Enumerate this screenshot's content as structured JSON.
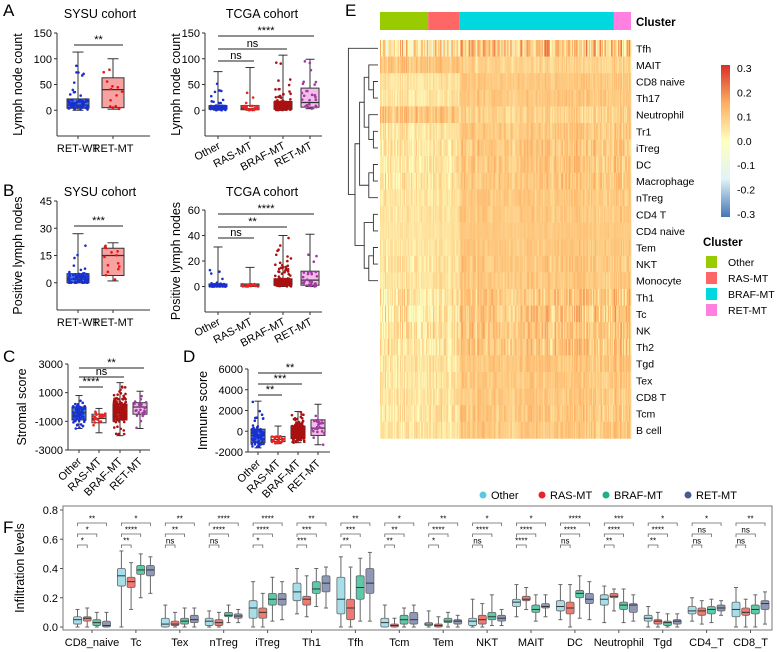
{
  "panel_labels": [
    "A",
    "B",
    "C",
    "D",
    "E",
    "F"
  ],
  "chart_data": [
    {
      "type": "box",
      "panel": "A",
      "title": "SYSU cohort",
      "ylabel": "Lymph node count",
      "ylim": [
        -50,
        150
      ],
      "yticks": [
        0,
        50,
        100,
        150
      ],
      "categories": [
        "RET-WT",
        "RET-MT"
      ],
      "stats": [
        [
          0,
          4,
          10,
          22,
          113
        ],
        [
          2,
          5,
          40,
          63,
          100
        ]
      ],
      "fill_colors": [
        "#3f7ee8",
        "#f7a1a1"
      ],
      "dot_colors": [
        "#1a2fd0",
        "#ee1111"
      ],
      "comparisons": [
        {
          "pair": [
            0,
            1
          ],
          "label": "**"
        }
      ]
    },
    {
      "type": "box",
      "panel": "A",
      "title": "TCGA  cohort",
      "ylabel": "Lymph node count",
      "ylim": [
        -50,
        150
      ],
      "yticks": [
        0,
        50,
        100,
        150
      ],
      "categories": [
        "Other",
        "RAS-MT",
        "BRAF-MT",
        "RET-MT"
      ],
      "stats": [
        [
          0,
          2,
          5,
          9,
          75
        ],
        [
          0,
          1,
          3,
          9,
          83
        ],
        [
          0,
          2,
          8,
          17,
          107
        ],
        [
          3,
          6,
          15,
          43,
          99
        ]
      ],
      "fill_colors": [
        "#3f7ee8",
        "#ffffff",
        "#c43a3a",
        "#f3bde9"
      ],
      "dot_colors": [
        "#1a2fd0",
        "#ee2222",
        "#aa1111",
        "#a03aa0"
      ],
      "comparisons": [
        {
          "pair": [
            0,
            1
          ],
          "label": "ns"
        },
        {
          "pair": [
            0,
            2
          ],
          "label": "ns"
        },
        {
          "pair": [
            0,
            3
          ],
          "label": "****"
        }
      ]
    },
    {
      "type": "box",
      "panel": "B",
      "title": "SYSU cohort",
      "ylabel": "Positive  lymph nodes",
      "ylim": [
        -15,
        45
      ],
      "yticks": [
        0,
        15,
        30,
        45
      ],
      "categories": [
        "RET-WT",
        "RET-MT"
      ],
      "stats": [
        [
          0,
          0,
          2,
          5,
          27
        ],
        [
          1,
          4,
          15,
          19,
          22
        ]
      ],
      "fill_colors": [
        "#3f7ee8",
        "#f7a1a1"
      ],
      "dot_colors": [
        "#1a2fd0",
        "#ee1111"
      ],
      "comparisons": [
        {
          "pair": [
            0,
            1
          ],
          "label": "***"
        }
      ]
    },
    {
      "type": "box",
      "panel": "B",
      "title": "TCGA  cohort",
      "ylabel": "Positive  lymph nodes",
      "ylim": [
        -20,
        60
      ],
      "yticks": [
        0,
        20,
        40,
        60
      ],
      "categories": [
        "Other",
        "RAS-MT",
        "BRAF-MT",
        "RET-MT"
      ],
      "stats": [
        [
          0,
          0,
          1,
          2,
          31
        ],
        [
          0,
          0,
          1,
          2,
          15
        ],
        [
          0,
          1,
          3,
          6,
          40
        ],
        [
          0,
          1,
          5,
          12,
          41
        ]
      ],
      "fill_colors": [
        "#3f7ee8",
        "#ffffff",
        "#c43a3a",
        "#f3bde9"
      ],
      "dot_colors": [
        "#1a2fd0",
        "#ee2222",
        "#aa1111",
        "#a03aa0"
      ],
      "comparisons": [
        {
          "pair": [
            0,
            1
          ],
          "label": "ns"
        },
        {
          "pair": [
            0,
            2
          ],
          "label": "**"
        },
        {
          "pair": [
            0,
            3
          ],
          "label": "****"
        }
      ]
    },
    {
      "type": "box",
      "panel": "C",
      "title": "",
      "ylabel": "Stromal  score",
      "ylim": [
        -3000,
        3000
      ],
      "yticks": [
        -3000,
        -1000,
        1000,
        3000
      ],
      "categories": [
        "Other",
        "RAS-MT",
        "BRAF-MT",
        "RET-MT"
      ],
      "stats": [
        [
          -1500,
          -900,
          -400,
          0,
          800
        ],
        [
          -1800,
          -1100,
          -800,
          -500,
          -100
        ],
        [
          -2000,
          -900,
          -400,
          200,
          1700
        ],
        [
          -1500,
          -500,
          0,
          300,
          1100
        ]
      ],
      "fill_colors": [
        "#3f7ee8",
        "#ffffff",
        "#c43a3a",
        "#f3bde9"
      ],
      "dot_colors": [
        "#1a2fd0",
        "#ee2222",
        "#aa1111",
        "#a03aa0"
      ],
      "comparisons": [
        {
          "pair": [
            0,
            1
          ],
          "label": "****"
        },
        {
          "pair": [
            0,
            2
          ],
          "label": "ns"
        },
        {
          "pair": [
            0,
            3
          ],
          "label": "**"
        }
      ]
    },
    {
      "type": "box",
      "panel": "D",
      "title": "",
      "ylabel": "Immune score",
      "ylim": [
        -2000,
        6000
      ],
      "yticks": [
        -2000,
        0,
        2000,
        4000,
        6000
      ],
      "categories": [
        "Other",
        "RAS-MT",
        "BRAF-MT",
        "RET-MT"
      ],
      "stats": [
        [
          -1600,
          -1100,
          -400,
          200,
          2900
        ],
        [
          -1200,
          -1000,
          -800,
          -500,
          500
        ],
        [
          -1100,
          -700,
          0,
          500,
          1900
        ],
        [
          -1300,
          -400,
          300,
          1100,
          2600
        ]
      ],
      "fill_colors": [
        "#3f7ee8",
        "#ffffff",
        "#c43a3a",
        "#f3bde9"
      ],
      "dot_colors": [
        "#1a2fd0",
        "#ee2222",
        "#aa1111",
        "#a03aa0"
      ],
      "comparisons": [
        {
          "pair": [
            0,
            1
          ],
          "label": "**"
        },
        {
          "pair": [
            0,
            2
          ],
          "label": "***"
        },
        {
          "pair": [
            0,
            3
          ],
          "label": "**"
        }
      ]
    },
    {
      "type": "heatmap",
      "panel": "E",
      "annotation_title": "Cluster",
      "rows": [
        "Tfh",
        "MAIT",
        "CD8 naive",
        "Th17",
        "Neutrophil",
        "Tr1",
        "iTreg",
        "DC",
        "Macrophage",
        "nTreg",
        "CD4 T",
        "CD4 naive",
        "Tem",
        "NKT",
        "Monocyte",
        "Th1",
        "Tc",
        "NK",
        "Th2",
        "Tgd",
        "Tex",
        "CD8 T",
        "Tcm",
        "B cell"
      ],
      "clusters": [
        {
          "name": "Other",
          "color": "#99cc00",
          "approx_samples": 48
        },
        {
          "name": "RAS-MT",
          "color": "#ff6666",
          "approx_samples": 31
        },
        {
          "name": "BRAF-MT",
          "color": "#00d8e0",
          "approx_samples": 154
        },
        {
          "name": "RET-MT",
          "color": "#ff80e0",
          "approx_samples": 17
        }
      ],
      "colorbar": {
        "range": [
          -0.3,
          0.3
        ],
        "ticks": [
          "0.3",
          "0.2",
          "0.1",
          "0.0",
          "-0.1",
          "-0.2",
          "-0.3"
        ],
        "colors": [
          "#4575b4",
          "#e0f3f8",
          "#ffffbf",
          "#fdae61",
          "#d73027"
        ]
      },
      "legend_title": "Cluster"
    },
    {
      "type": "box",
      "panel": "F",
      "ylabel": "Infiltration  levels",
      "ylim": [
        0,
        0.8
      ],
      "yticks": [
        "0.0",
        "0.2",
        "0.4",
        "0.6",
        "0.8"
      ],
      "legend": [
        {
          "name": "Other",
          "color": "#5bc8e3"
        },
        {
          "name": "RAS-MT",
          "color": "#e8242a"
        },
        {
          "name": "BRAF-MT",
          "color": "#1fae8a"
        },
        {
          "name": "RET-MT",
          "color": "#4a5a8c"
        }
      ],
      "fill_colors": [
        "#a6dfea",
        "#ee7a72",
        "#5ccaa8",
        "#8e98b8"
      ],
      "categories": [
        "CD8_naive",
        "Tc",
        "Tex",
        "nTreg",
        "iTreg",
        "Th1",
        "Tfh",
        "Tcm",
        "Tem",
        "NKT",
        "MAIT",
        "DC",
        "Neutrophil",
        "Tgd",
        "CD4_T",
        "CD8_T"
      ],
      "stats": [
        [
          [
            0,
            0.02,
            0.05,
            0.07,
            0.12
          ],
          [
            0,
            0.04,
            0.06,
            0.07,
            0.13
          ],
          [
            0,
            0.01,
            0.03,
            0.05,
            0.1
          ],
          [
            0,
            0,
            0.01,
            0.04,
            0.1
          ]
        ],
        [
          [
            0,
            0.28,
            0.35,
            0.4,
            0.52
          ],
          [
            0.12,
            0.27,
            0.31,
            0.34,
            0.44
          ],
          [
            0.2,
            0.36,
            0.39,
            0.42,
            0.5
          ],
          [
            0.23,
            0.35,
            0.39,
            0.42,
            0.48
          ]
        ],
        [
          [
            0,
            0,
            0.02,
            0.06,
            0.15
          ],
          [
            0,
            0.01,
            0.02,
            0.04,
            0.1
          ],
          [
            0,
            0.02,
            0.04,
            0.06,
            0.13
          ],
          [
            0,
            0.03,
            0.05,
            0.08,
            0.13
          ]
        ],
        [
          [
            0,
            0.01,
            0.04,
            0.06,
            0.11
          ],
          [
            0,
            0.01,
            0.03,
            0.05,
            0.1
          ],
          [
            0.03,
            0.07,
            0.08,
            0.1,
            0.15
          ],
          [
            0.03,
            0.06,
            0.075,
            0.09,
            0.12
          ]
        ],
        [
          [
            0,
            0.06,
            0.13,
            0.18,
            0.31
          ],
          [
            0,
            0.06,
            0.1,
            0.13,
            0.23
          ],
          [
            0.04,
            0.15,
            0.19,
            0.23,
            0.34
          ],
          [
            0.05,
            0.15,
            0.19,
            0.23,
            0.31
          ]
        ],
        [
          [
            0.09,
            0.18,
            0.24,
            0.3,
            0.4
          ],
          [
            0.07,
            0.15,
            0.19,
            0.21,
            0.35
          ],
          [
            0.14,
            0.23,
            0.26,
            0.31,
            0.4
          ],
          [
            0.13,
            0.24,
            0.3,
            0.35,
            0.41
          ]
        ],
        [
          [
            0,
            0.09,
            0.19,
            0.34,
            0.48
          ],
          [
            0,
            0.05,
            0.13,
            0.19,
            0.41
          ],
          [
            0.04,
            0.19,
            0.27,
            0.35,
            0.47
          ],
          [
            0.04,
            0.23,
            0.3,
            0.4,
            0.51
          ]
        ],
        [
          [
            0,
            0,
            0.03,
            0.06,
            0.15
          ],
          [
            0,
            0,
            0.01,
            0.02,
            0.06
          ],
          [
            0,
            0.02,
            0.05,
            0.08,
            0.13
          ],
          [
            0,
            0.02,
            0.05,
            0.1,
            0.15
          ]
        ],
        [
          [
            0,
            0.01,
            0.02,
            0.03,
            0.11
          ],
          [
            0,
            0,
            0.01,
            0.02,
            0.07
          ],
          [
            0,
            0.03,
            0.04,
            0.06,
            0.1
          ],
          [
            0,
            0.02,
            0.04,
            0.05,
            0.08
          ]
        ],
        [
          [
            0,
            0.01,
            0.04,
            0.06,
            0.19
          ],
          [
            0,
            0.02,
            0.05,
            0.08,
            0.16
          ],
          [
            0.01,
            0.05,
            0.07,
            0.1,
            0.22
          ],
          [
            0.01,
            0.04,
            0.06,
            0.08,
            0.12
          ]
        ],
        [
          [
            0.07,
            0.14,
            0.17,
            0.19,
            0.29
          ],
          [
            0.12,
            0.18,
            0.19,
            0.21,
            0.27
          ],
          [
            0.04,
            0.1,
            0.12,
            0.15,
            0.22
          ],
          [
            0.07,
            0.13,
            0.14,
            0.16,
            0.22
          ]
        ],
        [
          [
            0.05,
            0.11,
            0.14,
            0.18,
            0.29
          ],
          [
            0,
            0.09,
            0.13,
            0.17,
            0.29
          ],
          [
            0.06,
            0.2,
            0.23,
            0.25,
            0.35
          ],
          [
            0.05,
            0.16,
            0.19,
            0.23,
            0.31
          ]
        ],
        [
          [
            0.03,
            0.15,
            0.19,
            0.22,
            0.28
          ],
          [
            0.11,
            0.2,
            0.21,
            0.23,
            0.26
          ],
          [
            0.03,
            0.12,
            0.15,
            0.17,
            0.26
          ],
          [
            0.04,
            0.1,
            0.15,
            0.16,
            0.22
          ]
        ],
        [
          [
            0,
            0.04,
            0.06,
            0.08,
            0.14
          ],
          [
            0,
            0.02,
            0.04,
            0.05,
            0.1
          ],
          [
            0,
            0.01,
            0.03,
            0.04,
            0.09
          ],
          [
            0,
            0.02,
            0.04,
            0.05,
            0.09
          ]
        ],
        [
          [
            0.04,
            0.09,
            0.11,
            0.14,
            0.2
          ],
          [
            0.02,
            0.08,
            0.11,
            0.13,
            0.18
          ],
          [
            0.03,
            0.09,
            0.12,
            0.14,
            0.19
          ],
          [
            0.08,
            0.11,
            0.13,
            0.15,
            0.18
          ]
        ],
        [
          [
            0,
            0.07,
            0.12,
            0.17,
            0.27
          ],
          [
            0,
            0.08,
            0.1,
            0.13,
            0.19
          ],
          [
            0,
            0.09,
            0.12,
            0.15,
            0.22
          ],
          [
            0.02,
            0.12,
            0.16,
            0.18,
            0.24
          ]
        ]
      ],
      "significance": [
        [
          "*",
          "*",
          "**"
        ],
        [
          "**",
          "****",
          "*"
        ],
        [
          "ns",
          "**",
          "**"
        ],
        [
          "ns",
          "****",
          "****"
        ],
        [
          "*",
          "****",
          "****"
        ],
        [
          "***",
          "***",
          "**"
        ],
        [
          "**",
          "***",
          "**"
        ],
        [
          "**",
          "**",
          "*"
        ],
        [
          "*",
          "****",
          "**"
        ],
        [
          "ns",
          "****",
          "*"
        ],
        [
          "****",
          "****",
          "*"
        ],
        [
          "ns",
          "****",
          "****"
        ],
        [
          "**",
          "****",
          "***"
        ],
        [
          "**",
          "****",
          "*"
        ],
        [
          "ns",
          "ns",
          "*"
        ],
        [
          "ns",
          "ns",
          "**"
        ]
      ],
      "significance_pairs": [
        "Other vs RAS-MT",
        "Other vs BRAF-MT",
        "Other vs RET-MT"
      ]
    }
  ]
}
